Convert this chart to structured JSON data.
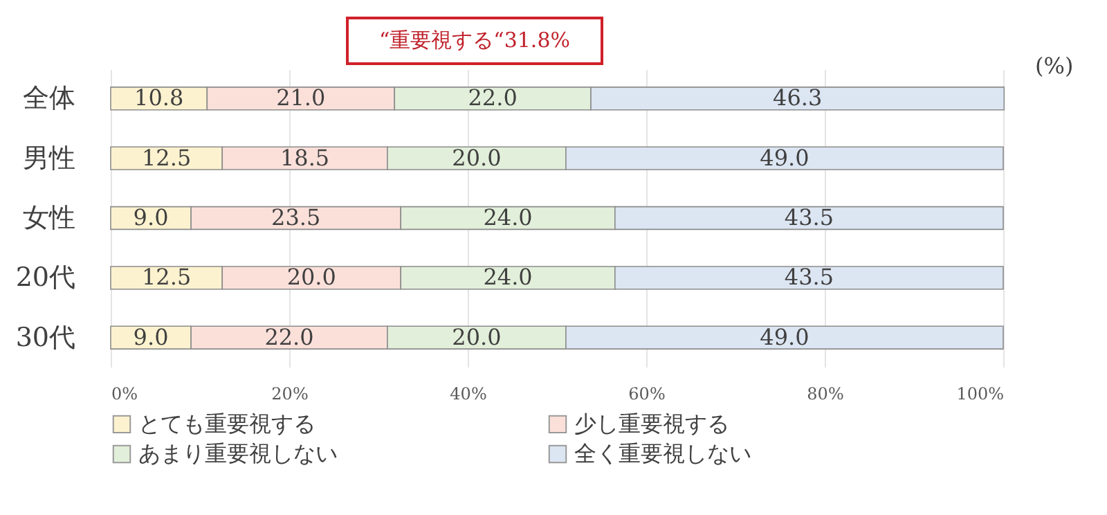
{
  "chart_data": {
    "type": "bar",
    "orientation": "horizontal",
    "stacked": true,
    "categories": [
      "全体",
      "男性",
      "女性",
      "20代",
      "30代"
    ],
    "series": [
      {
        "name": "とても重要視する",
        "color": "#fdf2cf",
        "values": [
          10.8,
          12.5,
          9.0,
          12.5,
          9.0
        ],
        "value_labels": [
          "10.8",
          "12.5",
          "9.0",
          "12.5",
          "9.0"
        ]
      },
      {
        "name": "少し重要視する",
        "color": "#fbe0da",
        "values": [
          21.0,
          18.5,
          23.5,
          20.0,
          22.0
        ],
        "value_labels": [
          "21.0",
          "18.5",
          "23.5",
          "20.0",
          "22.0"
        ]
      },
      {
        "name": "あまり重要視しない",
        "color": "#e2efda",
        "values": [
          22.0,
          20.0,
          24.0,
          24.0,
          20.0
        ],
        "value_labels": [
          "22.0",
          "20.0",
          "24.0",
          "24.0",
          "20.0"
        ]
      },
      {
        "name": "全く重要視しない",
        "color": "#dce5f2",
        "values": [
          46.3,
          49.0,
          43.5,
          43.5,
          49.0
        ],
        "value_labels": [
          "46.3",
          "49.0",
          "43.5",
          "43.5",
          "49.0"
        ]
      }
    ],
    "xlim": [
      0,
      100
    ],
    "xticks": [
      {
        "value": 0,
        "label": "0%"
      },
      {
        "value": 20,
        "label": "20%"
      },
      {
        "value": 40,
        "label": "40%"
      },
      {
        "value": 60,
        "label": "60%"
      },
      {
        "value": 80,
        "label": "80%"
      },
      {
        "value": 100,
        "label": "100%"
      }
    ],
    "grid": "x",
    "legend": "bottom",
    "annotations": [
      "“重要視する“31.8%",
      "(%)"
    ]
  }
}
